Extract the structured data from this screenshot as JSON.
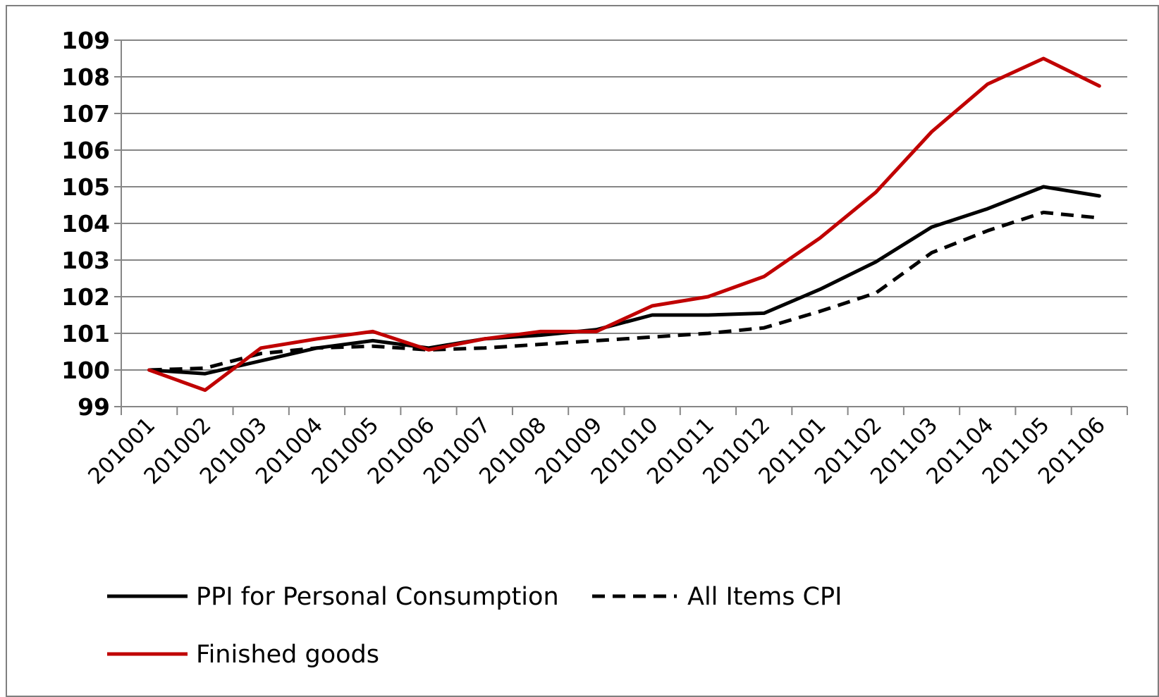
{
  "chart_data": {
    "type": "line",
    "title": "",
    "xlabel": "",
    "ylabel": "",
    "ylim": [
      99,
      109
    ],
    "yticks": [
      99,
      100,
      101,
      102,
      103,
      104,
      105,
      106,
      107,
      108,
      109
    ],
    "grid": "horizontal",
    "legend_position": "bottom-left",
    "categories": [
      "201001",
      "201002",
      "201003",
      "201004",
      "201005",
      "201006",
      "201007",
      "201008",
      "201009",
      "201010",
      "201011",
      "201012",
      "201101",
      "201102",
      "201103",
      "201104",
      "201105",
      "201106"
    ],
    "series": [
      {
        "name": "PPI for Personal Consumption",
        "color": "#000000",
        "dash": "solid",
        "values": [
          100.0,
          99.9,
          100.25,
          100.6,
          100.8,
          100.6,
          100.85,
          100.95,
          101.1,
          101.5,
          101.5,
          101.55,
          102.2,
          102.95,
          103.9,
          104.4,
          105.0,
          104.75
        ]
      },
      {
        "name": "All Items CPI",
        "color": "#000000",
        "dash": "dashed",
        "values": [
          100.0,
          100.05,
          100.45,
          100.6,
          100.65,
          100.55,
          100.6,
          100.7,
          100.8,
          100.9,
          101.0,
          101.15,
          101.6,
          102.1,
          103.2,
          103.8,
          104.3,
          104.15
        ]
      },
      {
        "name": "Finished goods",
        "color": "#c00000",
        "dash": "solid",
        "values": [
          100.0,
          99.45,
          100.6,
          100.85,
          101.05,
          100.55,
          100.85,
          101.05,
          101.05,
          101.75,
          102.0,
          102.55,
          103.6,
          104.85,
          106.5,
          107.8,
          108.5,
          107.75
        ]
      }
    ]
  }
}
